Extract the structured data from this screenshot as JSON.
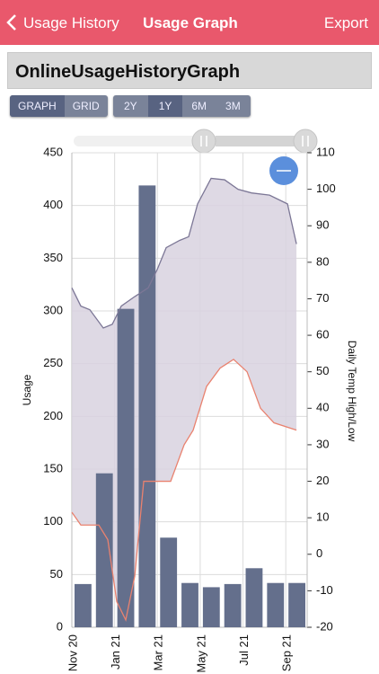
{
  "header": {
    "back": "Usage History",
    "title": "Usage Graph",
    "action": "Export"
  },
  "page_title": "OnlineUsageHistoryGraph",
  "view_toggle": [
    "GRAPH",
    "GRID"
  ],
  "ranges": [
    "2Y",
    "1Y",
    "6M",
    "3M"
  ],
  "chart_data": {
    "type": "bar",
    "categories": [
      "Nov 20",
      null,
      "Jan 21",
      null,
      "Mar 21",
      null,
      "May 21",
      null,
      "Jul 21",
      null,
      "Sep 21"
    ],
    "series": [
      {
        "name": "Usage",
        "color": "#646f8c",
        "values": [
          41,
          146,
          302,
          419,
          85,
          42,
          38,
          41,
          56,
          42,
          42
        ]
      },
      {
        "name": "High",
        "type": "line",
        "axis": "y2",
        "color": "#7c7796",
        "x": [
          0,
          0.42,
          0.84,
          1.47,
          1.89,
          2.31,
          2.94,
          3.57,
          3.99,
          4.41,
          5.04,
          5.46,
          5.88,
          6.51,
          7.14,
          7.77,
          8.4,
          9.24,
          10.08,
          10.5
        ],
        "values": [
          73,
          68,
          67,
          62,
          63,
          68,
          70.6,
          73,
          78,
          84,
          86,
          87,
          96,
          103,
          102.6,
          100,
          99,
          98.4,
          96,
          85
        ]
      },
      {
        "name": "Low",
        "type": "line",
        "axis": "y2",
        "color": "#e9826f",
        "x": [
          0,
          0.42,
          1.26,
          1.68,
          2.1,
          2.52,
          2.94,
          3.36,
          3.99,
          4.62,
          5.25,
          5.67,
          6.3,
          6.93,
          7.56,
          8.19,
          8.82,
          9.45,
          10.5
        ],
        "values": [
          11.5,
          8,
          8,
          4,
          -13,
          -18,
          -6,
          20,
          20,
          20,
          30,
          34,
          46,
          51,
          53.4,
          50,
          40,
          36,
          34
        ]
      }
    ],
    "xlim": [
      0,
      11
    ],
    "ylabel": "Usage",
    "y2label": "Daily Temp High/Low",
    "ylim": [
      0,
      450
    ],
    "yticks": [
      0,
      50,
      100,
      150,
      200,
      250,
      300,
      350,
      400,
      450
    ],
    "y2lim": [
      -20,
      110
    ],
    "y2ticks": [
      -20,
      -10,
      0,
      10,
      20,
      30,
      40,
      50,
      60,
      70,
      80,
      90,
      100,
      110
    ],
    "grid": true
  }
}
